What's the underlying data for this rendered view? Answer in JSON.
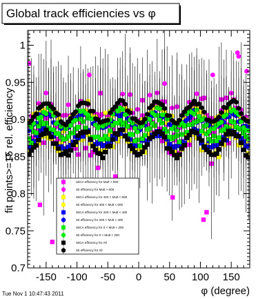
{
  "chart_data": {
    "type": "scatter",
    "title": "Global track efficiencies vs φ",
    "xlabel": "φ (degree)",
    "ylabel": "fit points>=15 rel. efficiency",
    "xlim": [
      -180,
      180
    ],
    "ylim": [
      0.7,
      1.02
    ],
    "x_ticks": [
      "-150",
      "-100",
      "-50",
      "0",
      "50",
      "100",
      "150"
    ],
    "x_tick_values": [
      -150,
      -100,
      -50,
      0,
      50,
      100,
      150
    ],
    "y_ticks": [
      "0.7",
      "0.75",
      "0.8",
      "0.85",
      "0.9",
      "0.95",
      "1"
    ],
    "y_tick_values": [
      0.7,
      0.75,
      0.8,
      0.85,
      0.9,
      0.95,
      1.0
    ],
    "grid": false,
    "legend_position": "bottom-center",
    "series": [
      {
        "name": "StiCA efficiency  for Mult > 600",
        "color": "#ff00ff",
        "marker": "square",
        "base": 0.885,
        "amp": 0.005,
        "scatter": 0.07,
        "err": 0.085
      },
      {
        "name": "Sti efficiency  for Mult > 600",
        "color": "#ff00ff",
        "marker": "circle",
        "base": 0.905,
        "amp": 0.005,
        "scatter": 0.04,
        "err": 0.065
      },
      {
        "name": "StiCA efficiency  for 400 < Mult < 600",
        "color": "#ffff00",
        "marker": "square",
        "base": 0.868,
        "amp": 0.012,
        "scatter": 0.015,
        "err": 0.03
      },
      {
        "name": "Sti efficiency  for 400 < Mult < 600",
        "color": "#ffff00",
        "marker": "circle",
        "base": 0.905,
        "amp": 0.01,
        "scatter": 0.012,
        "err": 0.025
      },
      {
        "name": "StiCA efficiency  for 200 < Mult < 400",
        "color": "#0000ff",
        "marker": "square",
        "base": 0.873,
        "amp": 0.01,
        "scatter": 0.01,
        "err": 0.02
      },
      {
        "name": "Sti efficiency  for 200 < Mult < 400",
        "color": "#0000ff",
        "marker": "circle",
        "base": 0.898,
        "amp": 0.01,
        "scatter": 0.008,
        "err": 0.015
      },
      {
        "name": "StiCA efficiency  for 0 < Mult < 200",
        "color": "#00ee00",
        "marker": "square",
        "base": 0.885,
        "amp": 0.012,
        "scatter": 0.012,
        "err": 0.02
      },
      {
        "name": "Sti efficiency  for 0 < Mult < 200",
        "color": "#00ee00",
        "marker": "circle",
        "base": 0.9,
        "amp": 0.012,
        "scatter": 0.01,
        "err": 0.015
      },
      {
        "name": "StiCA efficiency  for All",
        "color": "#000000",
        "marker": "square",
        "base": 0.868,
        "amp": 0.016,
        "scatter": 0.006,
        "err": 0.01
      },
      {
        "name": "Sti efficiency  for All",
        "color": "#000000",
        "marker": "circle",
        "base": 0.91,
        "amp": 0.014,
        "scatter": 0.005,
        "err": 0.008
      }
    ],
    "highlights": [
      {
        "series": 0,
        "x": -160,
        "y": 0.785
      },
      {
        "series": 0,
        "x": -140,
        "y": 0.735
      },
      {
        "series": 0,
        "x": 105,
        "y": 0.765
      },
      {
        "series": 0,
        "x": 110,
        "y": 0.775
      },
      {
        "series": 0,
        "x": 55,
        "y": 0.795
      },
      {
        "series": 1,
        "x": 160,
        "y": 0.99
      },
      {
        "series": 1,
        "x": 162,
        "y": 0.985
      },
      {
        "series": 1,
        "x": 175,
        "y": 0.965
      },
      {
        "series": 1,
        "x": -80,
        "y": 0.96
      },
      {
        "series": 1,
        "x": 120,
        "y": 0.96
      }
    ]
  },
  "footer": {
    "timestamp": "Tue Nov  1 10:47:43 2011"
  }
}
